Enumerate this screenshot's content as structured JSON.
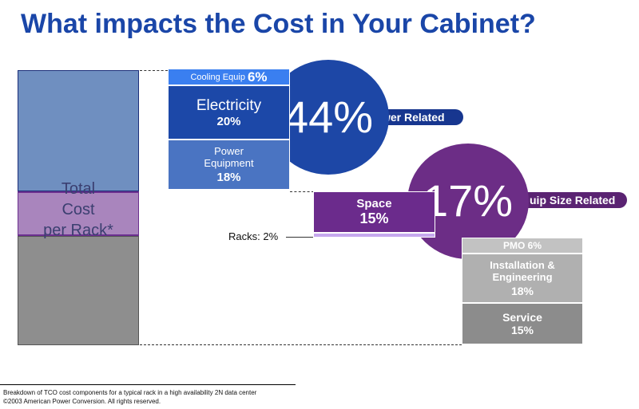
{
  "title": "What impacts the Cost in Your Cabinet?",
  "total_bar": {
    "label_line1": "Total",
    "label_line2": "Cost",
    "label_line3": "per Rack*"
  },
  "power_group": {
    "percent": "44%",
    "label": "wer Related",
    "color": "#1d47a6"
  },
  "equip_group": {
    "percent": "17%",
    "label": "uip Size Related",
    "color": "#6c2d86"
  },
  "segments": {
    "cooling": {
      "label": "Cooling Equip",
      "value": "6%"
    },
    "electricity": {
      "label": "Electricity",
      "value": "20%"
    },
    "power_equipment": {
      "label_line1": "Power",
      "label_line2": "Equipment",
      "value": "18%"
    },
    "space": {
      "label": "Space",
      "value": "15%"
    },
    "racks": {
      "label": "Racks: 2%"
    },
    "pmo": {
      "label": "PMO 6%"
    },
    "installation": {
      "label_line1": "Installation &",
      "label_line2": "Engineering",
      "value": "18%"
    },
    "service": {
      "label": "Service",
      "value": "15%"
    }
  },
  "footer": {
    "note": "Breakdown of TCO cost components for a typical rack in a high availability 2N data center",
    "copyright": "©2003 American Power Conversion. All rights reserved."
  }
}
